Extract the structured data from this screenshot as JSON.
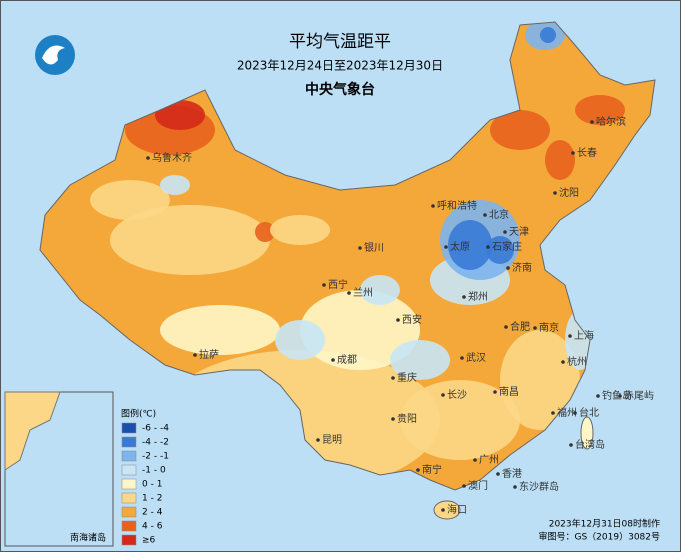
{
  "header": {
    "title": "平均气温距平",
    "subtitle": "2023年12月24日至2023年12月30日",
    "agency": "中央气象台"
  },
  "legend": {
    "title": "图例(℃)",
    "items": [
      {
        "label": "-6 - -4",
        "color": "#1a4fb0"
      },
      {
        "label": "-4 - -2",
        "color": "#3a7ad6"
      },
      {
        "label": "-2 - -1",
        "color": "#7db4ec"
      },
      {
        "label": "-1 - 0",
        "color": "#c8e6f6"
      },
      {
        "label": "0 - 1",
        "color": "#fff6c8"
      },
      {
        "label": "1 - 2",
        "color": "#fcd787"
      },
      {
        "label": "2 - 4",
        "color": "#f5a83a"
      },
      {
        "label": "4 - 6",
        "color": "#e8621e"
      },
      {
        "label": "≥6",
        "color": "#d42a1a"
      }
    ]
  },
  "cities": [
    "哈尔滨",
    "长春",
    "沈阳",
    "北京",
    "天津",
    "呼和浩特",
    "太原",
    "石家庄",
    "济南",
    "银川",
    "西宁",
    "兰州",
    "郑州",
    "西安",
    "合肥",
    "南京",
    "上海",
    "成都",
    "拉萨",
    "武汉",
    "杭州",
    "重庆",
    "长沙",
    "南昌",
    "福州",
    "台北",
    "贵阳",
    "昆明",
    "南宁",
    "广州",
    "香港",
    "澳门",
    "海口",
    "乌鲁木齐",
    "台湾岛",
    "东沙群岛",
    "钓鱼岛",
    "赤尾屿"
  ],
  "inset": {
    "label": "南海诸岛"
  },
  "footer": [
    "2023年12月31日08时制作",
    "审图号：GS（2019）3082号"
  ]
}
